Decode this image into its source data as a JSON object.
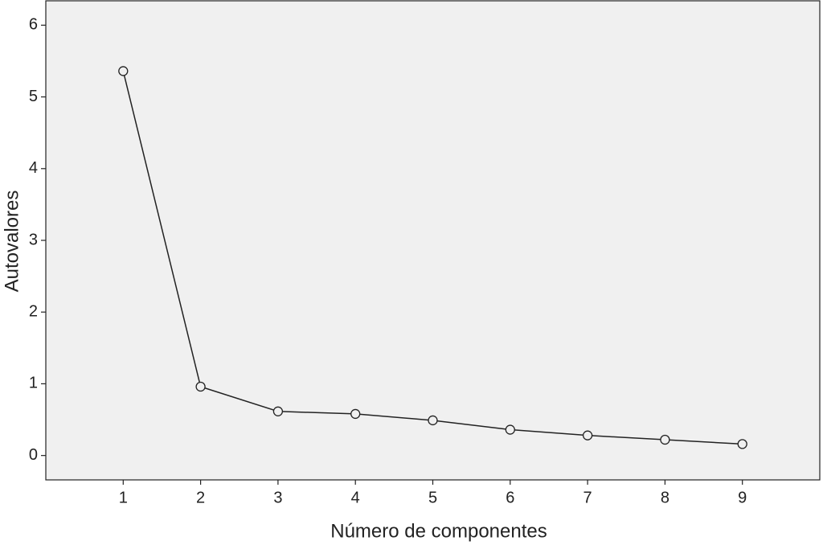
{
  "chart_data": {
    "type": "line",
    "x_label": "Número de componentes",
    "y_label": "Autovalores",
    "x": [
      1,
      2,
      3,
      4,
      5,
      6,
      7,
      8,
      9
    ],
    "series": [
      {
        "color": "#222222",
        "values": [
          5.36,
          0.96,
          0.615,
          0.58,
          0.49,
          0.36,
          0.28,
          0.22,
          0.16
        ]
      }
    ],
    "xlim": [
      0,
      10
    ],
    "xticks": [
      1,
      2,
      3,
      4,
      5,
      6,
      7,
      8,
      9
    ],
    "ylim": [
      -0.34,
      6.34
    ],
    "yticks": [
      0,
      1,
      2,
      3,
      4,
      5,
      6
    ],
    "marker": "open-circle",
    "background": "#f0f0f0"
  }
}
